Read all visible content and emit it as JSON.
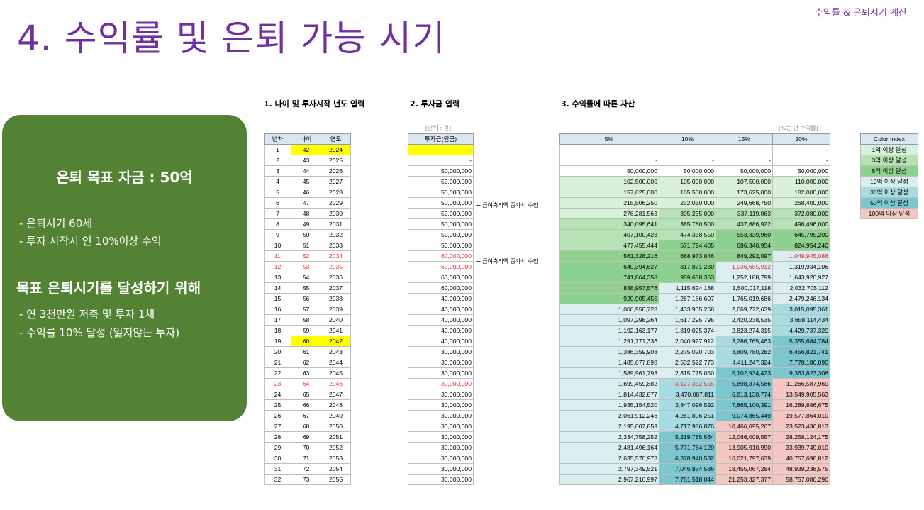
{
  "page_title": "4. 수익률 및 은퇴 가능 시기",
  "top_right_label": "수익률 & 은퇴시기 계산",
  "green_box": {
    "heading": "은퇴 목표 자금 : 50억",
    "line1": "- 은퇴시기 60세",
    "line2": "- 투자 시작시 연 10%이상 수익",
    "heading2": "목표 은퇴시기를 달성하기 위해",
    "line3": "- 연 3천만원 저축 및 투자 1채",
    "line4": "- 수익률 10% 달성 (잃지않는 투자)"
  },
  "sections": {
    "s1": "1. 나이 및 투자시작 년도 입력",
    "s2": "2. 투자금 입력",
    "s3": "3. 수익률에 따른 자산"
  },
  "notes": {
    "unit": "[단위 : 원]",
    "rate": "[%는 년 수익률]"
  },
  "annotations": {
    "a1": "← 급여축적액 증가시 수정",
    "a2": "← 급여축적액 증가시 수정"
  },
  "headers": {
    "year_no": "년차",
    "age": "나이",
    "year": "연도",
    "invest": "투자금(원금)",
    "r5": "5%",
    "r10": "10%",
    "r15": "15%",
    "r20": "20%"
  },
  "legend": {
    "title": "Color Index",
    "items": [
      "1억 이상 달성",
      "3억 이상 달성",
      "5억 이상 달성",
      "10억 이상 달성",
      "30억 이상 달성",
      "50억 이상 달성",
      "100억 이상 달성"
    ]
  },
  "rows": [
    [
      "1",
      "42",
      "2024",
      "-",
      "-",
      "-",
      "-",
      "-"
    ],
    [
      "2",
      "43",
      "2025",
      "-",
      "-",
      "-",
      "-",
      "-"
    ],
    [
      "3",
      "44",
      "2026",
      "50,000,000",
      "50,000,000",
      "50,000,000",
      "50,000,000",
      "50,000,000"
    ],
    [
      "4",
      "45",
      "2027",
      "50,000,000",
      "102,500,000",
      "105,000,000",
      "107,500,000",
      "110,000,000"
    ],
    [
      "5",
      "46",
      "2028",
      "50,000,000",
      "157,625,000",
      "165,500,000",
      "173,625,000",
      "182,000,000"
    ],
    [
      "6",
      "47",
      "2029",
      "50,000,000",
      "215,506,250",
      "232,050,000",
      "249,668,750",
      "268,400,000"
    ],
    [
      "7",
      "48",
      "2030",
      "50,000,000",
      "276,281,563",
      "305,255,000",
      "337,119,063",
      "372,080,000"
    ],
    [
      "8",
      "49",
      "2031",
      "50,000,000",
      "340,095,641",
      "385,780,500",
      "437,686,922",
      "496,496,000"
    ],
    [
      "9",
      "50",
      "2032",
      "50,000,000",
      "407,100,423",
      "474,358,550",
      "553,339,960",
      "645,795,200"
    ],
    [
      "10",
      "51",
      "2033",
      "50,000,000",
      "477,455,444",
      "571,794,405",
      "686,340,954",
      "824,954,240"
    ],
    [
      "11",
      "52",
      "2034",
      "60,000,000",
      "561,328,216",
      "688,973,846",
      "849,292,097",
      "1,049,945,088"
    ],
    [
      "12",
      "53",
      "2035",
      "60,000,000",
      "649,394,627",
      "817,871,230",
      "1,036,685,912",
      "1,319,934,106"
    ],
    [
      "13",
      "54",
      "2036",
      "60,000,000",
      "741,864,358",
      "959,658,353",
      "1,252,188,799",
      "1,643,920,927"
    ],
    [
      "14",
      "55",
      "2037",
      "60,000,000",
      "838,957,576",
      "1,115,624,188",
      "1,500,017,118",
      "2,032,705,112"
    ],
    [
      "15",
      "56",
      "2038",
      "40,000,000",
      "920,905,455",
      "1,267,186,607",
      "1,765,019,686",
      "2,479,246,134"
    ],
    [
      "16",
      "57",
      "2039",
      "40,000,000",
      "1,006,950,728",
      "1,433,905,268",
      "2,069,772,639",
      "3,015,095,361"
    ],
    [
      "17",
      "58",
      "2040",
      "40,000,000",
      "1,097,298,264",
      "1,617,295,795",
      "2,420,238,535",
      "3,658,114,434"
    ],
    [
      "18",
      "59",
      "2041",
      "40,000,000",
      "1,192,163,177",
      "1,819,025,374",
      "2,823,274,315",
      "4,429,737,320"
    ],
    [
      "19",
      "60",
      "2042",
      "40,000,000",
      "1,291,771,336",
      "2,040,927,912",
      "3,286,765,463",
      "5,355,684,784"
    ],
    [
      "20",
      "61",
      "2043",
      "30,000,000",
      "1,386,359,903",
      "2,275,020,703",
      "3,809,780,282",
      "6,456,821,741"
    ],
    [
      "21",
      "62",
      "2044",
      "30,000,000",
      "1,485,677,898",
      "2,532,522,773",
      "4,411,247,324",
      "7,778,186,090"
    ],
    [
      "22",
      "63",
      "2045",
      "30,000,000",
      "1,589,961,793",
      "2,815,775,050",
      "5,102,934,423",
      "9,363,823,308"
    ],
    [
      "23",
      "64",
      "2046",
      "30,000,000",
      "1,699,459,882",
      "3,127,352,555",
      "5,898,374,586",
      "11,266,587,969"
    ],
    [
      "24",
      "65",
      "2047",
      "30,000,000",
      "1,814,432,877",
      "3,470,087,811",
      "6,813,130,774",
      "13,549,905,563"
    ],
    [
      "25",
      "66",
      "2048",
      "30,000,000",
      "1,935,154,520",
      "3,847,096,592",
      "7,865,100,391",
      "16,289,886,675"
    ],
    [
      "26",
      "67",
      "2049",
      "30,000,000",
      "2,061,912,246",
      "4,261,806,251",
      "9,074,865,449",
      "19,577,864,010"
    ],
    [
      "27",
      "68",
      "2050",
      "30,000,000",
      "2,195,007,859",
      "4,717,986,876",
      "10,466,095,267",
      "23,523,436,813"
    ],
    [
      "28",
      "69",
      "2051",
      "30,000,000",
      "2,334,758,252",
      "5,219,785,564",
      "12,066,009,557",
      "28,258,124,175"
    ],
    [
      "29",
      "70",
      "2052",
      "30,000,000",
      "2,481,496,164",
      "5,771,764,120",
      "13,905,910,990",
      "33,939,749,010"
    ],
    [
      "30",
      "71",
      "2053",
      "30,000,000",
      "2,635,570,973",
      "6,378,940,532",
      "16,021,797,639",
      "40,757,698,812"
    ],
    [
      "31",
      "72",
      "2054",
      "30,000,000",
      "2,797,349,521",
      "7,046,834,586",
      "18,455,067,284",
      "48,939,238,575"
    ],
    [
      "32",
      "73",
      "2055",
      "30,000,000",
      "2,967,216,997",
      "7,781,518,044",
      "21,253,327,377",
      "58,757,086,290"
    ]
  ],
  "row_styles": {
    "yellow_rows": [
      0,
      18
    ],
    "red_rows": [
      10,
      11,
      22
    ],
    "red_cells": [
      [
        10,
        7
      ],
      [
        11,
        6
      ],
      [
        22,
        5
      ]
    ]
  },
  "colors": {
    "title": "#7030a0",
    "green_box": "#548235",
    "header_fill": "#dce6f1",
    "highlight_yellow": "#ffff00",
    "red_text": "#e03030"
  }
}
